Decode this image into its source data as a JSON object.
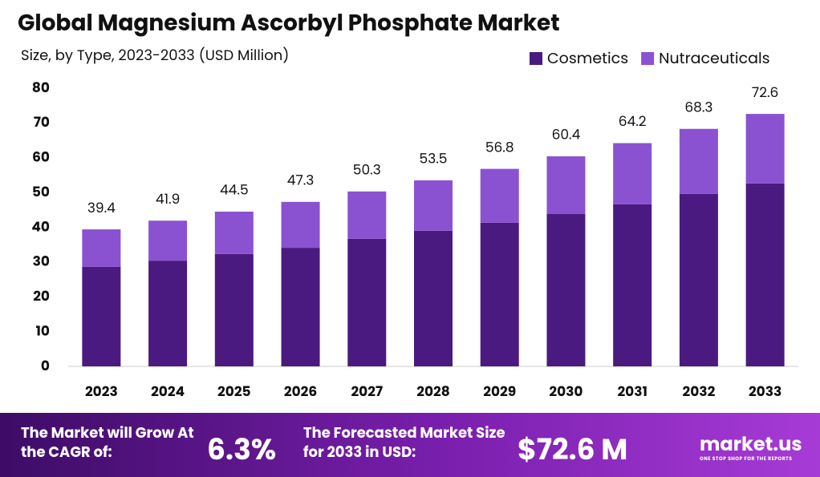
{
  "chart_data": {
    "type": "stacked-bar",
    "title": "Global Magnesium Ascorbyl Phosphate Market",
    "subtitle": "Size, by Type, 2023-2033 (USD Million)",
    "categories": [
      "2023",
      "2024",
      "2025",
      "2026",
      "2027",
      "2028",
      "2029",
      "2030",
      "2031",
      "2032",
      "2033"
    ],
    "series": [
      {
        "name": "Cosmetics",
        "color": "#4a1a80",
        "values": [
          28.6,
          30.4,
          32.3,
          34.1,
          36.7,
          39.0,
          41.3,
          43.8,
          46.6,
          49.6,
          52.6
        ]
      },
      {
        "name": "Nutraceuticals",
        "color": "#8a52d0",
        "values": [
          10.8,
          11.5,
          12.2,
          13.2,
          13.6,
          14.5,
          15.5,
          16.6,
          17.6,
          18.7,
          20.0
        ]
      }
    ],
    "totals": [
      39.4,
      41.9,
      44.5,
      47.3,
      50.3,
      53.5,
      56.8,
      60.4,
      64.2,
      68.3,
      72.6
    ],
    "ylim": [
      0,
      80
    ],
    "yticks": [
      0,
      10,
      20,
      30,
      40,
      50,
      60,
      70,
      80
    ],
    "grid": false,
    "legend": "top-right"
  },
  "footer": {
    "cagr_text": "The Market will Grow At the CAGR of:",
    "cagr_value": "6.3%",
    "forecast_text": "The Forecasted Market Size for 2033 in USD:",
    "forecast_value": "$72.6 M",
    "brand": "market.us",
    "tagline": "ONE STOP SHOP FOR THE REPORTS"
  }
}
